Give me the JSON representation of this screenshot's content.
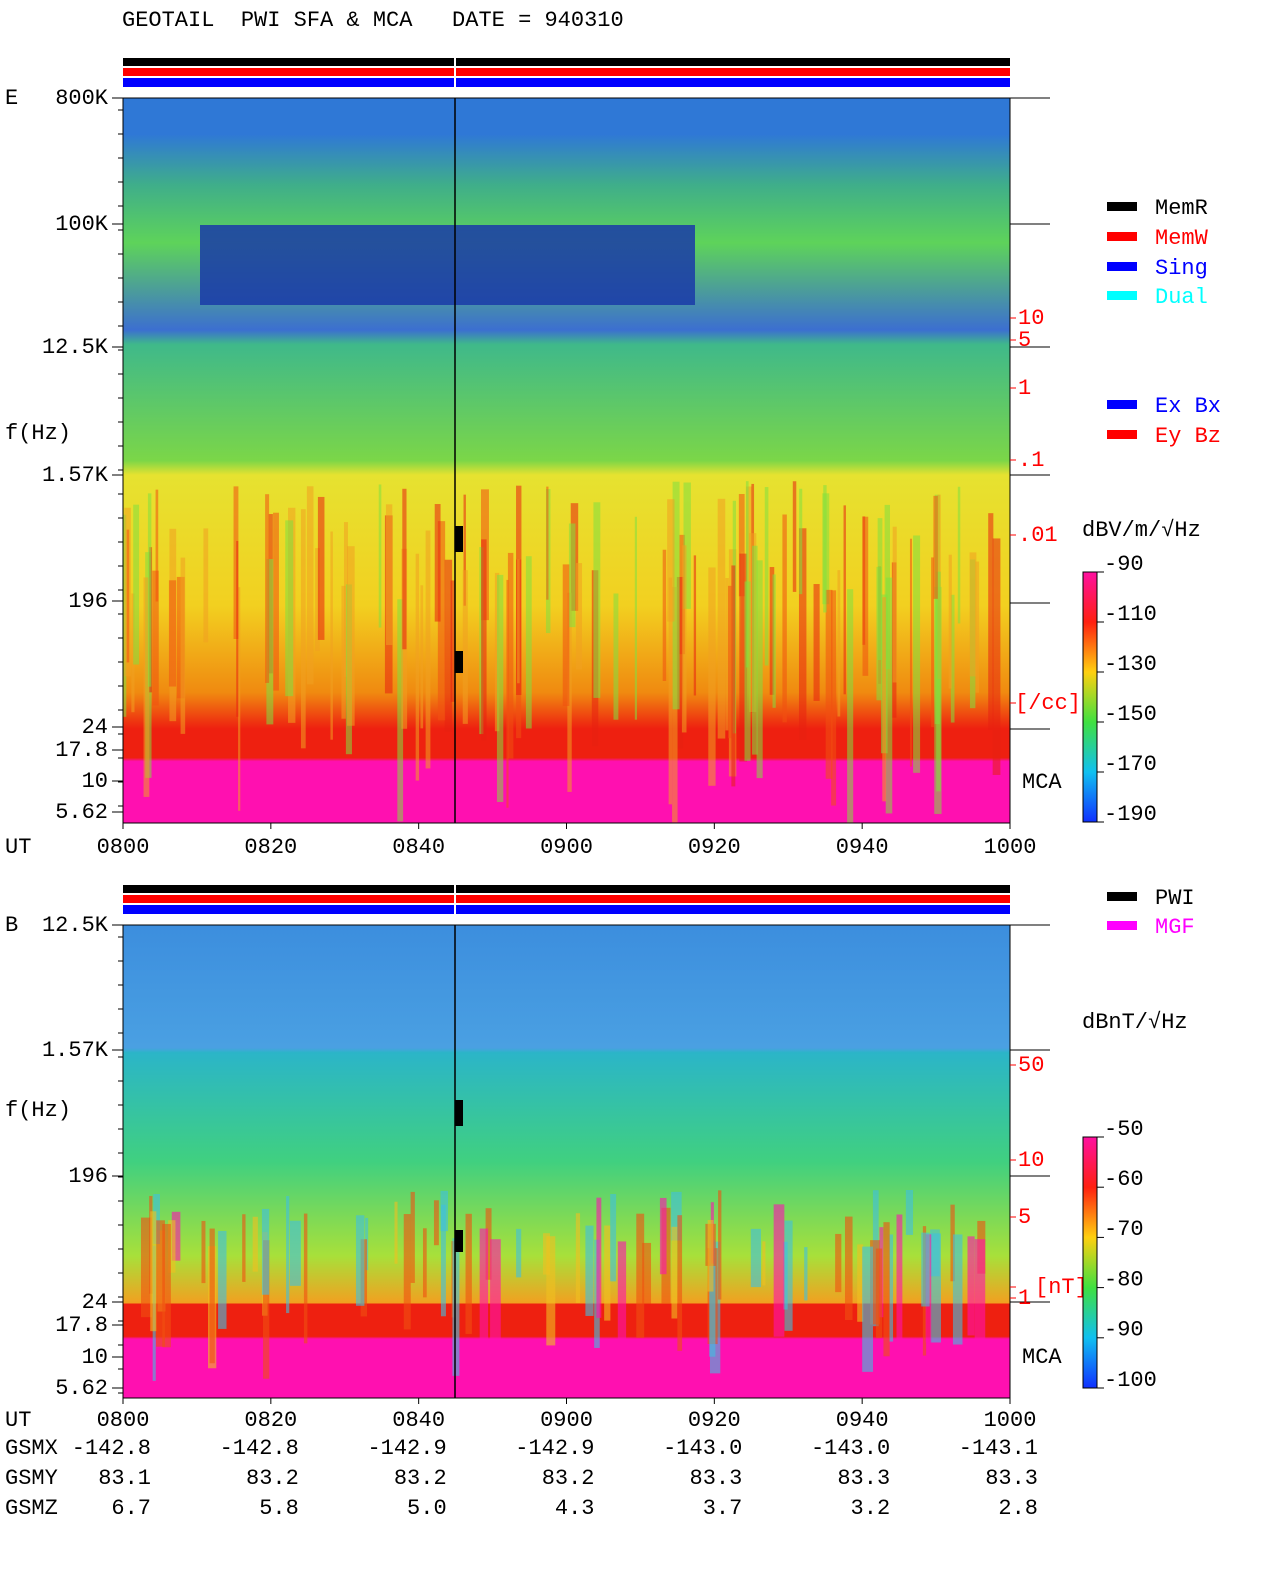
{
  "header": {
    "title": "GEOTAIL  PWI SFA & MCA   DATE = 940310"
  },
  "panels": [
    {
      "label": "E",
      "y_axis_title": "f(Hz)",
      "y_ticks": [
        "800K",
        "100K",
        "12.5K",
        "1.57K",
        "196",
        "24",
        "17.8",
        "10",
        "5.62"
      ],
      "x_axis_title": "UT",
      "x_ticks": [
        "0800",
        "0820",
        "0840",
        "0900",
        "0920",
        "0940",
        "1000"
      ],
      "right_scale": [
        "10",
        "5",
        "1",
        ".1",
        ".01",
        "[/cc]"
      ],
      "mca_label": "MCA",
      "legend": [
        {
          "label": "MemR",
          "color": "#000000"
        },
        {
          "label": "MemW",
          "color": "#ff0000"
        },
        {
          "label": "Sing",
          "color": "#0000ff"
        },
        {
          "label": "Dual",
          "color": "#00ffff"
        }
      ],
      "legend2": [
        {
          "label": "Ex Bx",
          "color": "#0000ff"
        },
        {
          "label": "Ey Bz",
          "color": "#ff0000"
        }
      ],
      "colorbar": {
        "unit": "dBV/m/√Hz",
        "labels": [
          "-90",
          "-110",
          "-130",
          "-150",
          "-170",
          "-190"
        ]
      }
    },
    {
      "label": "B",
      "y_axis_title": "f(Hz)",
      "y_ticks": [
        "12.5K",
        "1.57K",
        "196",
        "24",
        "17.8",
        "10",
        "5.62"
      ],
      "x_axis_title": "UT",
      "x_ticks": [
        "0800",
        "0820",
        "0840",
        "0900",
        "0920",
        "0940",
        "1000"
      ],
      "right_scale": [
        "50",
        "10",
        "5",
        "1",
        "[nT]"
      ],
      "mca_label": "MCA",
      "legend": [
        {
          "label": "PWI",
          "color": "#000000"
        },
        {
          "label": "MGF",
          "color": "#ff00ff"
        }
      ],
      "colorbar": {
        "unit": "dBnT/√Hz",
        "labels": [
          "-50",
          "-60",
          "-70",
          "-80",
          "-90",
          "-100"
        ]
      }
    }
  ],
  "orbit": {
    "rows": [
      {
        "name": "GSMX",
        "values": [
          "-142.8",
          "-142.8",
          "-142.9",
          "-142.9",
          "-143.0",
          "-143.0",
          "-143.1"
        ]
      },
      {
        "name": "GSMY",
        "values": [
          "83.1",
          "83.2",
          "83.2",
          "83.2",
          "83.3",
          "83.3",
          "83.3"
        ]
      },
      {
        "name": "GSMZ",
        "values": [
          "6.7",
          "5.8",
          "5.0",
          "4.3",
          "3.7",
          "3.2",
          "2.8"
        ]
      }
    ]
  }
}
